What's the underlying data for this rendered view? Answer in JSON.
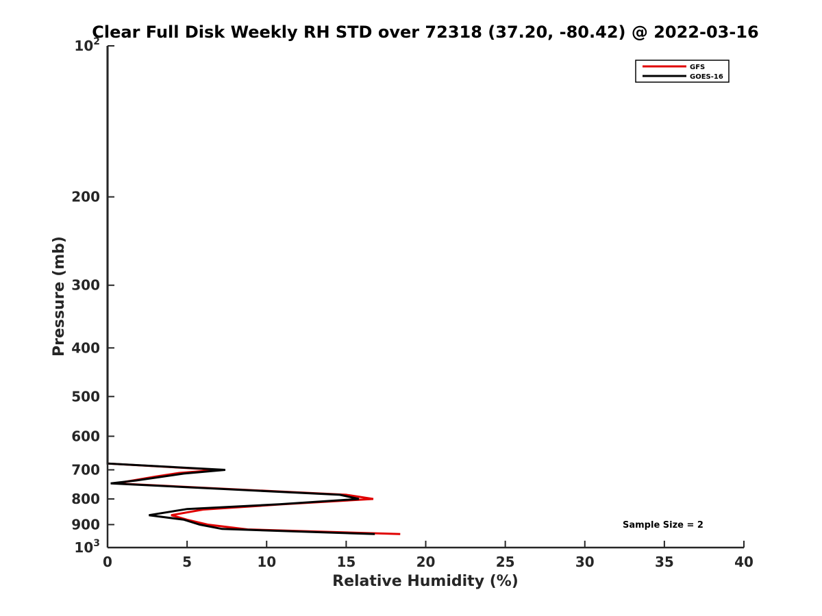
{
  "chart_data": {
    "type": "line",
    "title": "Clear Full Disk Weekly RH STD over 72318 (37.20, -80.42) @ 2022-03-16",
    "xlabel": "Relative Humidity (%)",
    "ylabel": "Pressure (mb)",
    "xlim": [
      0,
      40
    ],
    "ylim": [
      100,
      1000
    ],
    "y_scale": "log",
    "y_reversed": true,
    "x_ticks": [
      0,
      5,
      10,
      15,
      20,
      25,
      30,
      35,
      40
    ],
    "y_ticks": [
      {
        "value": 100,
        "base": "10",
        "exp": "2",
        "label": ""
      },
      {
        "value": 200,
        "label": "200"
      },
      {
        "value": 300,
        "label": "300"
      },
      {
        "value": 400,
        "label": "400"
      },
      {
        "value": 500,
        "label": "500"
      },
      {
        "value": 600,
        "label": "600"
      },
      {
        "value": 700,
        "label": "700"
      },
      {
        "value": 800,
        "label": "800"
      },
      {
        "value": 900,
        "label": "900"
      },
      {
        "value": 1000,
        "base": "10",
        "exp": "3",
        "label": ""
      }
    ],
    "legend_position": "top-right",
    "series": [
      {
        "name": "GFS",
        "color": "#e00000",
        "points": [
          [
            0,
            100
          ],
          [
            0,
            200
          ],
          [
            0,
            300
          ],
          [
            0,
            400
          ],
          [
            0,
            500
          ],
          [
            0,
            600
          ],
          [
            0,
            680
          ],
          [
            7.0,
            700
          ],
          [
            4.5,
            710
          ],
          [
            3.0,
            722
          ],
          [
            0.5,
            745
          ],
          [
            15.0,
            785
          ],
          [
            16.7,
            800
          ],
          [
            11.0,
            820
          ],
          [
            6.0,
            840
          ],
          [
            4.0,
            862
          ],
          [
            5.0,
            880
          ],
          [
            6.3,
            900
          ],
          [
            8.8,
            920
          ],
          [
            18.4,
            940
          ]
        ]
      },
      {
        "name": "GOES-16",
        "color": "#000000",
        "points": [
          [
            0,
            100
          ],
          [
            0,
            200
          ],
          [
            0,
            300
          ],
          [
            0,
            400
          ],
          [
            0,
            500
          ],
          [
            0,
            600
          ],
          [
            0,
            680
          ],
          [
            7.4,
            700
          ],
          [
            4.8,
            712
          ],
          [
            1.8,
            735
          ],
          [
            0.2,
            745
          ],
          [
            14.6,
            785
          ],
          [
            15.8,
            800
          ],
          [
            10.8,
            820
          ],
          [
            5.0,
            838
          ],
          [
            2.6,
            862
          ],
          [
            4.8,
            880
          ],
          [
            5.8,
            900
          ],
          [
            7.2,
            918
          ],
          [
            16.8,
            940
          ]
        ]
      }
    ],
    "annotation": "Sample Size = 2"
  }
}
